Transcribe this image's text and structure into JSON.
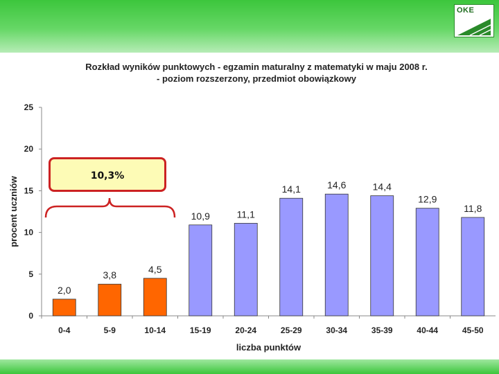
{
  "logo": {
    "text": "OKE"
  },
  "chart_data": {
    "type": "bar",
    "title_line1": "Rozkład wyników punktowych - egzamin maturalny z matematyki w maju 2008 r.",
    "title_line2": "- poziom rozszerzony, przedmiot obowiązkowy",
    "xlabel": "liczba punktów",
    "ylabel": "procent uczniów",
    "ylim": [
      0,
      25
    ],
    "yticks": [
      0,
      5,
      10,
      15,
      20,
      25
    ],
    "grid": false,
    "categories": [
      "0-4",
      "5-9",
      "10-14",
      "15-19",
      "20-24",
      "25-29",
      "30-34",
      "35-39",
      "40-44",
      "45-50"
    ],
    "values": [
      2.0,
      3.8,
      4.5,
      10.9,
      11.1,
      14.1,
      14.6,
      14.4,
      12.9,
      11.8
    ],
    "value_labels": [
      "2,0",
      "3,8",
      "4,5",
      "10,9",
      "11,1",
      "14,1",
      "14,6",
      "14,4",
      "12,9",
      "11,8"
    ],
    "bar_colors": [
      "#ff6600",
      "#ff6600",
      "#ff6600",
      "#9999ff",
      "#9999ff",
      "#9999ff",
      "#9999ff",
      "#9999ff",
      "#9999ff",
      "#9999ff"
    ],
    "annotation": "10,3%"
  },
  "colors": {
    "highlight_bar": "#ff6600",
    "normal_bar": "#9999ff",
    "band": "#3cc63c",
    "callout_border": "#cc2222",
    "callout_fill": "#fdfbb6"
  }
}
